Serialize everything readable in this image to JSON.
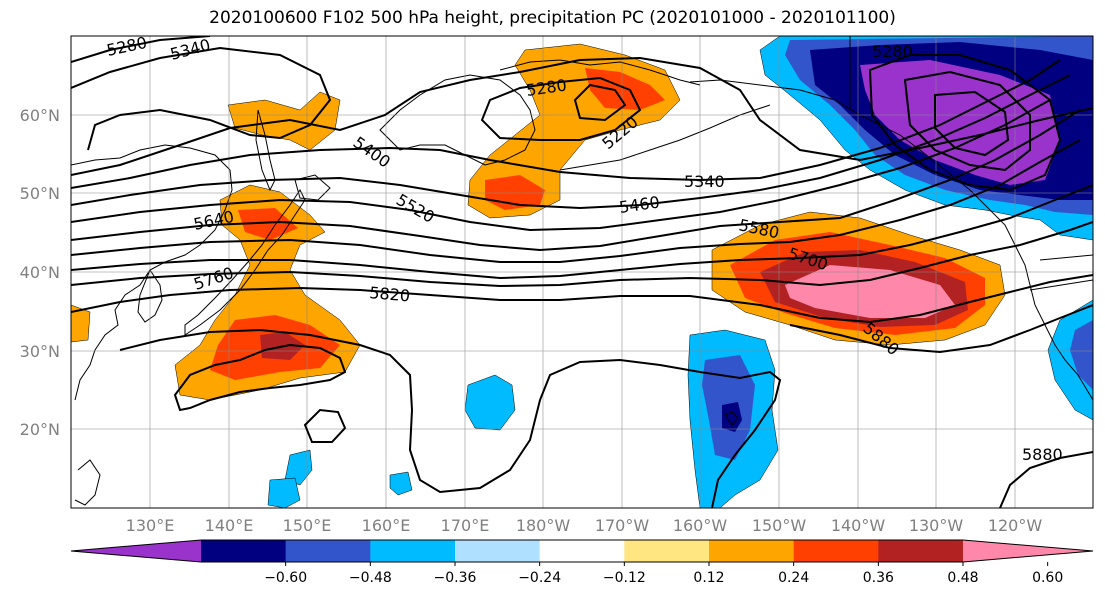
{
  "title": "2020100600 F102 500 hPa height, precipitation PC (2020101000 - 2020101100)",
  "lat_labels": [
    "60°N",
    "50°N",
    "40°N",
    "30°N",
    "20°N"
  ],
  "lon_labels": [
    "130°E",
    "140°E",
    "150°E",
    "160°E",
    "170°E",
    "180°W",
    "170°W",
    "160°W",
    "150°W",
    "140°W",
    "130°W",
    "120°W"
  ],
  "contour_labels": [
    "5280",
    "5340",
    "5280",
    "5220",
    "5400",
    "5340",
    "5520",
    "5460",
    "5640",
    "5580",
    "5700",
    "5760",
    "5820",
    "5880",
    "5880",
    "5280"
  ],
  "colorbar": {
    "colors": [
      "#9933cc",
      "#000080",
      "#3355cc",
      "#00bbff",
      "#b0e0ff",
      "#ffffff",
      "#ffe680",
      "#ffa500",
      "#ff4000",
      "#b22222",
      "#ff88aa"
    ],
    "ticks": [
      "−0.60",
      "−0.48",
      "−0.36",
      "−0.24",
      "−0.12",
      "0.12",
      "0.24",
      "0.36",
      "0.48",
      "0.60"
    ]
  },
  "variables": {
    "height_field": "500 hPa height",
    "shaded_field": "precipitation PC"
  }
}
